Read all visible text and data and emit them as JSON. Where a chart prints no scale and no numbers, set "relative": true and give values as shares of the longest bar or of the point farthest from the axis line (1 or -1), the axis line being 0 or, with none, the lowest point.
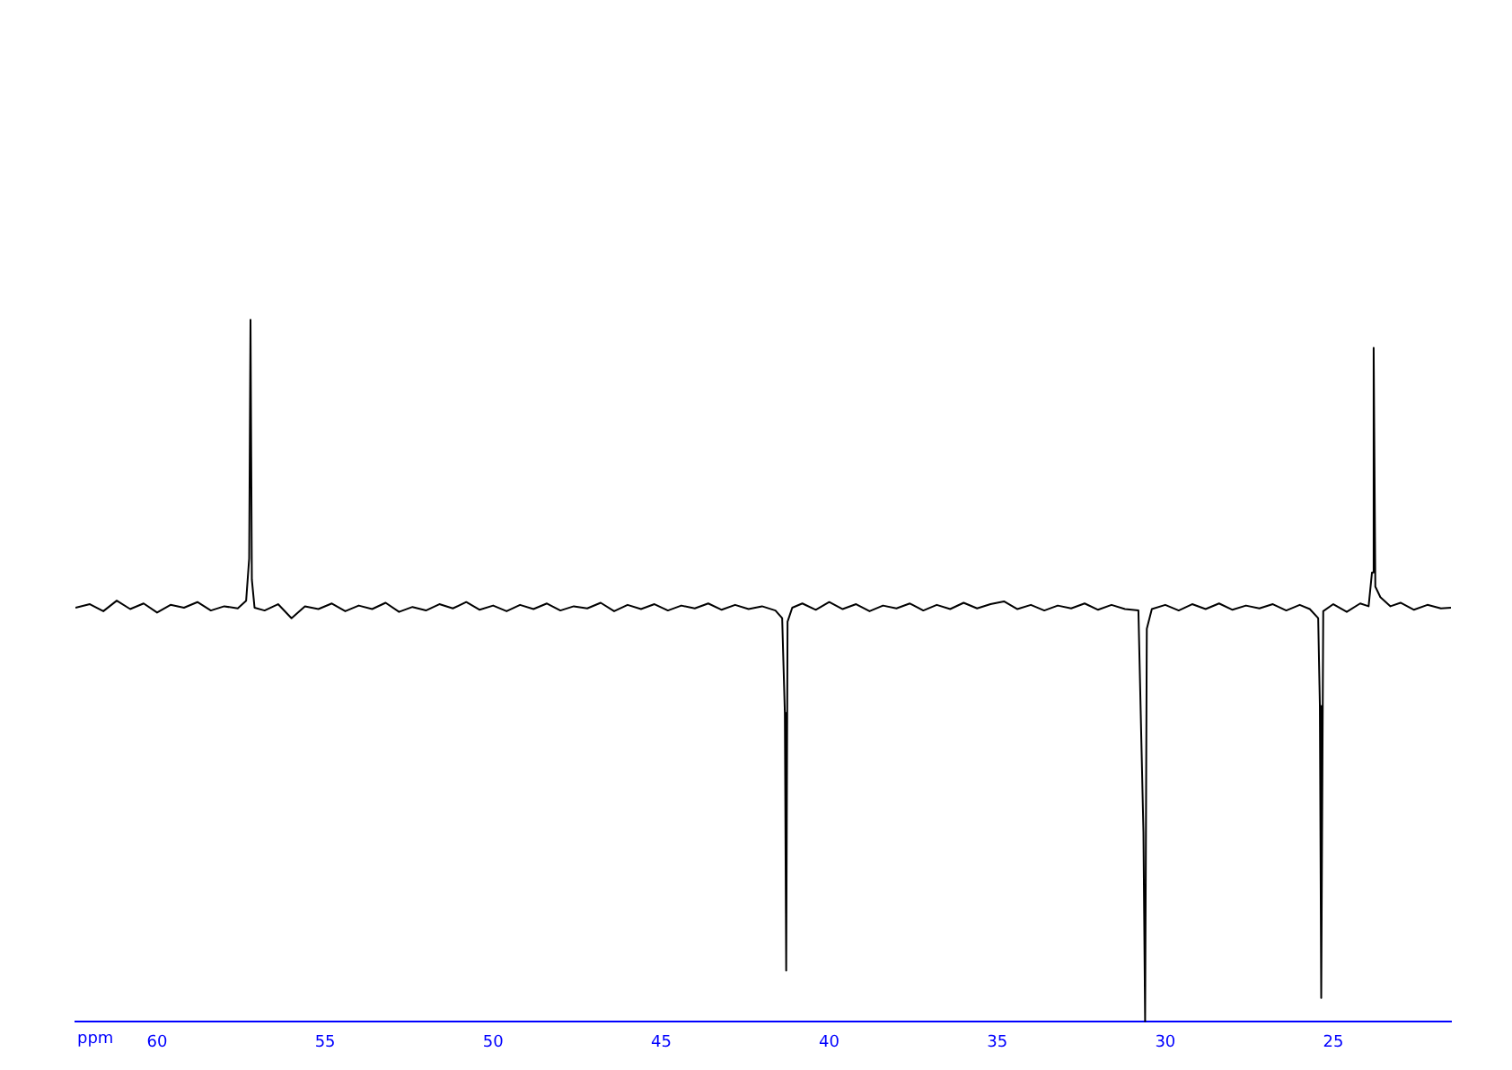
{
  "chart_data": {
    "type": "line",
    "relative": true,
    "xlabel": "ppm",
    "xlim": [
      62.43,
      21.5
    ],
    "xticks": [
      60,
      55,
      50,
      45,
      40,
      35,
      30,
      25
    ],
    "marker": "none",
    "grid": false,
    "legend": false,
    "series": [
      {
        "color": "#000000",
        "x": [
          62.43,
          62.0,
          61.6,
          61.2,
          60.8,
          60.4,
          60.0,
          59.6,
          59.2,
          58.8,
          58.4,
          58.0,
          57.6,
          57.35,
          57.26,
          57.22,
          57.18,
          57.1,
          56.8,
          56.4,
          56.0,
          55.6,
          55.2,
          54.8,
          54.4,
          54.0,
          53.6,
          53.2,
          52.8,
          52.4,
          52.0,
          51.6,
          51.2,
          50.8,
          50.4,
          50.0,
          49.6,
          49.2,
          48.8,
          48.4,
          48.0,
          47.6,
          47.2,
          46.8,
          46.4,
          46.0,
          45.6,
          45.2,
          44.8,
          44.4,
          44.0,
          43.6,
          43.2,
          42.8,
          42.4,
          42.0,
          41.6,
          41.4,
          41.32,
          41.28,
          41.24,
          41.1,
          40.8,
          40.4,
          40.0,
          39.6,
          39.2,
          38.8,
          38.4,
          38.0,
          37.6,
          37.2,
          36.8,
          36.4,
          36.0,
          35.6,
          35.2,
          34.8,
          34.4,
          34.0,
          33.6,
          33.2,
          32.8,
          32.4,
          32.0,
          31.6,
          31.2,
          30.8,
          30.65,
          30.6,
          30.55,
          30.4,
          30.0,
          29.6,
          29.2,
          28.8,
          28.4,
          28.0,
          27.6,
          27.2,
          26.8,
          26.4,
          26.0,
          25.7,
          25.45,
          25.4,
          25.36,
          25.3,
          25.0,
          24.6,
          24.2,
          23.95,
          23.85,
          23.8,
          23.75,
          23.6,
          23.3,
          23.0,
          22.6,
          22.2,
          21.8,
          21.5
        ],
        "values": [
          0.59,
          0.595,
          0.585,
          0.6,
          0.588,
          0.596,
          0.583,
          0.594,
          0.59,
          0.598,
          0.586,
          0.592,
          0.589,
          0.6,
          0.66,
          1.0,
          0.63,
          0.59,
          0.586,
          0.595,
          0.575,
          0.592,
          0.588,
          0.596,
          0.585,
          0.593,
          0.588,
          0.597,
          0.584,
          0.591,
          0.586,
          0.595,
          0.589,
          0.598,
          0.587,
          0.593,
          0.585,
          0.594,
          0.588,
          0.596,
          0.586,
          0.592,
          0.589,
          0.597,
          0.585,
          0.594,
          0.588,
          0.595,
          0.586,
          0.593,
          0.589,
          0.596,
          0.587,
          0.594,
          0.588,
          0.592,
          0.586,
          0.575,
          0.44,
          0.073,
          0.57,
          0.59,
          0.596,
          0.587,
          0.598,
          0.588,
          0.595,
          0.585,
          0.593,
          0.589,
          0.596,
          0.586,
          0.594,
          0.588,
          0.597,
          0.589,
          0.595,
          0.599,
          0.588,
          0.594,
          0.586,
          0.593,
          0.589,
          0.596,
          0.587,
          0.594,
          0.588,
          0.586,
          0.27,
          0,
          0.56,
          0.588,
          0.594,
          0.586,
          0.595,
          0.588,
          0.596,
          0.587,
          0.593,
          0.589,
          0.595,
          0.586,
          0.594,
          0.588,
          0.575,
          0.45,
          0.034,
          0.585,
          0.595,
          0.584,
          0.596,
          0.592,
          0.64,
          0.96,
          0.62,
          0.605,
          0.592,
          0.597,
          0.587,
          0.594,
          0.589,
          0.59
        ]
      }
    ]
  }
}
